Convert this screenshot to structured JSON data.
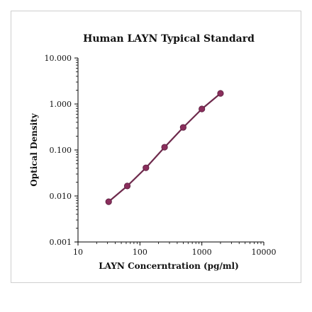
{
  "chart_data": {
    "type": "scatter",
    "title": "Human LAYN Typical Standard",
    "xlabel": "LAYN Concerntration (pg/ml)",
    "ylabel": "Optical Density",
    "x_scale": "log",
    "y_scale": "log",
    "xlim": [
      10,
      10000
    ],
    "ylim": [
      0.001,
      10
    ],
    "x_ticks": [
      "10",
      "100",
      "1000",
      "10000"
    ],
    "y_ticks": [
      "10.000",
      "1.000",
      "0.100",
      "0.010",
      "0.001"
    ],
    "grid": false,
    "legend": "none",
    "series": [
      {
        "x": [
          31.25,
          62.5,
          125,
          250,
          500,
          1000,
          2000
        ],
        "y": [
          0.0075,
          0.0165,
          0.041,
          0.115,
          0.31,
          0.78,
          1.7
        ]
      }
    ],
    "colors": {
      "marker": "#8a2e5c",
      "line": "#6e2a4c",
      "axis": "#000000"
    }
  }
}
